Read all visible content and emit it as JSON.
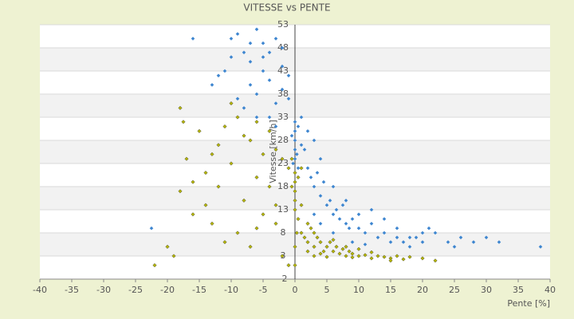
{
  "chart_data": {
    "type": "scatter",
    "title": "VITESSE vs PENTE",
    "x_label": "Pente [%]",
    "y_label": "Vitesse [km/h]",
    "xlim": [
      -40,
      40
    ],
    "xticks": [
      -40,
      -35,
      -30,
      -25,
      -20,
      -15,
      -10,
      -5,
      0,
      5,
      10,
      15,
      20,
      25,
      30,
      35,
      40
    ],
    "ylim": [
      -2,
      53
    ],
    "yticks": [
      -2,
      3,
      8,
      13,
      18,
      23,
      28,
      33,
      38,
      43,
      48,
      53
    ],
    "grid": true,
    "series": [
      {
        "color": "#3e86d0",
        "x": [
          -9,
          -8,
          -7,
          -6,
          -5,
          -4,
          -3,
          -2,
          -5,
          -7,
          -6,
          -4,
          -3,
          -10,
          -11,
          -12,
          -9,
          -8,
          -2,
          -1,
          -1,
          -4,
          -6,
          -3,
          -13,
          -10,
          -16,
          -5,
          -2,
          -7,
          0,
          0,
          0,
          0,
          0,
          0.5,
          -0.5,
          1,
          0.3,
          -0.3,
          1,
          0.5,
          1.5,
          2,
          2.5,
          3,
          3.5,
          4,
          4.5,
          5,
          5.5,
          6,
          6.5,
          7,
          7.5,
          8,
          8.5,
          9,
          10,
          11,
          12,
          13,
          14,
          15,
          16,
          17,
          18,
          19,
          20,
          21,
          22,
          24,
          25,
          26,
          28,
          30,
          32,
          38.5,
          3,
          2,
          4,
          6,
          8,
          10,
          12,
          4,
          6,
          3,
          9,
          11,
          -22.5,
          14,
          16,
          18,
          20
        ],
        "y": [
          51,
          47,
          45,
          52,
          49,
          47,
          50,
          44,
          43,
          40,
          38,
          41,
          36,
          46,
          43,
          42,
          37,
          35,
          39,
          42,
          37,
          33,
          33,
          31,
          40,
          50,
          50,
          46,
          48,
          49,
          32,
          30,
          28,
          26,
          24,
          31,
          29,
          27,
          25,
          23,
          33,
          22,
          26,
          22,
          20,
          18,
          21,
          16,
          19,
          14,
          15,
          12,
          13,
          11,
          14,
          10,
          9,
          11,
          9,
          8,
          10,
          7,
          8,
          6,
          7,
          6,
          5,
          7,
          6,
          9,
          8,
          6,
          5,
          7,
          6,
          7,
          6,
          5,
          28,
          30,
          24,
          18,
          15,
          12,
          13,
          10,
          8,
          12,
          6,
          5.5,
          9,
          11,
          9,
          7,
          8
        ]
      },
      {
        "color": "#b3b300",
        "x": [
          -22,
          -20,
          -19,
          -18,
          -17.5,
          -17,
          -16,
          -15,
          -14,
          -13,
          -12,
          -11,
          -10,
          -9,
          -8,
          -7,
          -6,
          -5,
          -4,
          -3,
          -2,
          -1,
          -9,
          -7,
          -5,
          -8,
          -10,
          -6,
          -4,
          -3,
          -12,
          -14,
          -11,
          -2,
          -1,
          -3,
          -18,
          -16,
          -13,
          -6,
          0,
          0,
          0,
          0,
          0,
          0.5,
          -0.5,
          1,
          0.5,
          0,
          0,
          0.3,
          1,
          -0.5,
          1,
          1.5,
          2,
          2.5,
          3,
          3.5,
          4,
          4.5,
          5,
          5.5,
          6,
          6.5,
          7,
          7.5,
          8,
          8.5,
          9,
          10,
          11,
          12,
          13,
          14,
          15,
          16,
          17,
          18,
          20,
          22,
          2,
          3,
          4,
          5,
          6,
          8,
          10,
          12,
          2,
          3,
          15,
          9
        ],
        "y": [
          1,
          5,
          3,
          17,
          32,
          24,
          19,
          30,
          21,
          10,
          27,
          31,
          23,
          33,
          15,
          28,
          20,
          25,
          18,
          14,
          24,
          22,
          8,
          5,
          12,
          29,
          36,
          32,
          30,
          10,
          18,
          14,
          6,
          3,
          1,
          26,
          35,
          12,
          25,
          9,
          21,
          19,
          17,
          15,
          13,
          20,
          18,
          14,
          11,
          1,
          5,
          8,
          22,
          24,
          8,
          7,
          6,
          9,
          5,
          7,
          6,
          4,
          5,
          6,
          4,
          5,
          3.5,
          4.5,
          3,
          4,
          3.5,
          3,
          3.2,
          2.5,
          3,
          2.8,
          2.5,
          3,
          2.3,
          2.8,
          2.5,
          2,
          4,
          3,
          3.5,
          2.8,
          6.5,
          5,
          4.5,
          3.8,
          10,
          8,
          2,
          2.7
        ]
      }
    ]
  }
}
